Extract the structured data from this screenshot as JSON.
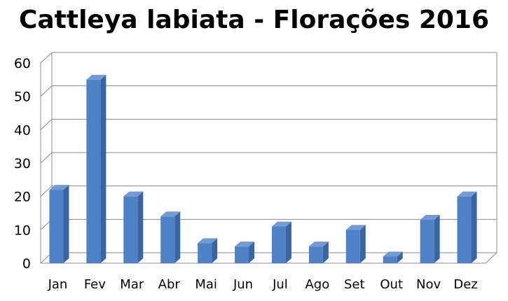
{
  "chart_data": {
    "type": "bar",
    "title": "Cattleya labiata - Florações 2016",
    "xlabel": "",
    "ylabel": "",
    "categories": [
      "Jan",
      "Fev",
      "Mar",
      "Abr",
      "Mai",
      "Jun",
      "Jul",
      "Ago",
      "Set",
      "Out",
      "Nov",
      "Dez"
    ],
    "values": [
      22,
      55,
      20,
      14,
      6,
      5,
      11,
      5,
      10,
      2,
      13,
      20
    ],
    "ylim": [
      0,
      60
    ],
    "yticks": [
      "0",
      "10",
      "20",
      "30",
      "40",
      "50",
      "60"
    ],
    "grid": true,
    "legend": "none",
    "three_d": true,
    "colors": {
      "bar_front": "#4f81c7",
      "bar_side": "#3a65a4",
      "bar_top": "#6f9bd8",
      "grid": "#8c8c8c"
    }
  }
}
